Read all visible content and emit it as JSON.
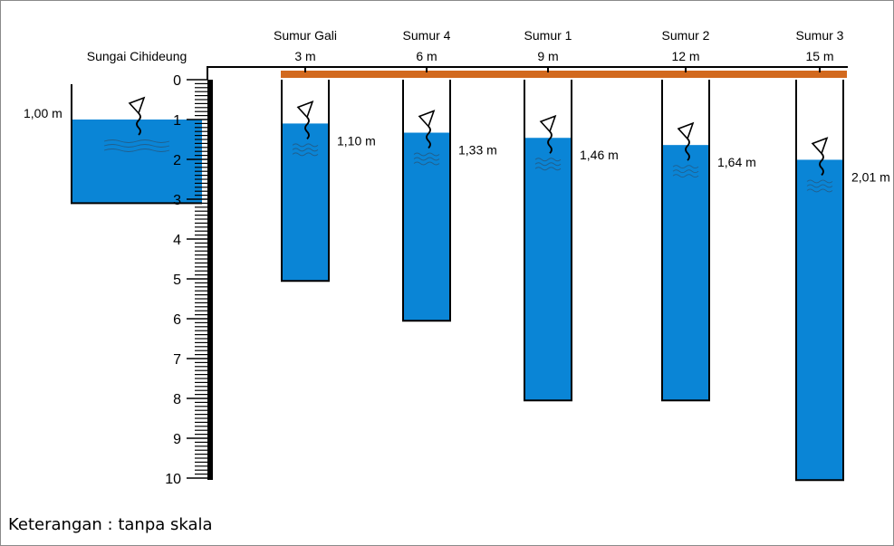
{
  "river": {
    "name": "Sungai Cihideung",
    "level_label": "1,00 m",
    "water_level": 1.0,
    "bottom": 3.1
  },
  "ruler": {
    "min": 0,
    "max": 10,
    "labels": [
      "0",
      "1",
      "2",
      "3",
      "4",
      "5",
      "6",
      "7",
      "8",
      "9",
      "10"
    ]
  },
  "wells": [
    {
      "name": "Sumur Gali",
      "distance": "3 m",
      "level_label": "1,10 m",
      "water_level": 1.1,
      "depth": 5.05
    },
    {
      "name": "Sumur 4",
      "distance": "6 m",
      "level_label": "1,33 m",
      "water_level": 1.33,
      "depth": 6.05
    },
    {
      "name": "Sumur 1",
      "distance": "9 m",
      "level_label": "1,46 m",
      "water_level": 1.46,
      "depth": 8.05
    },
    {
      "name": "Sumur 2",
      "distance": "12 m",
      "level_label": "1,64 m",
      "water_level": 1.64,
      "depth": 8.05
    },
    {
      "name": "Sumur 3",
      "distance": "15 m",
      "level_label": "2,01 m",
      "water_level": 2.01,
      "depth": 10.05
    }
  ],
  "note": "Keterangan : tanpa skala",
  "colors": {
    "water": "#0a85d6",
    "ground": "#d2691e",
    "outline": "#000000"
  }
}
